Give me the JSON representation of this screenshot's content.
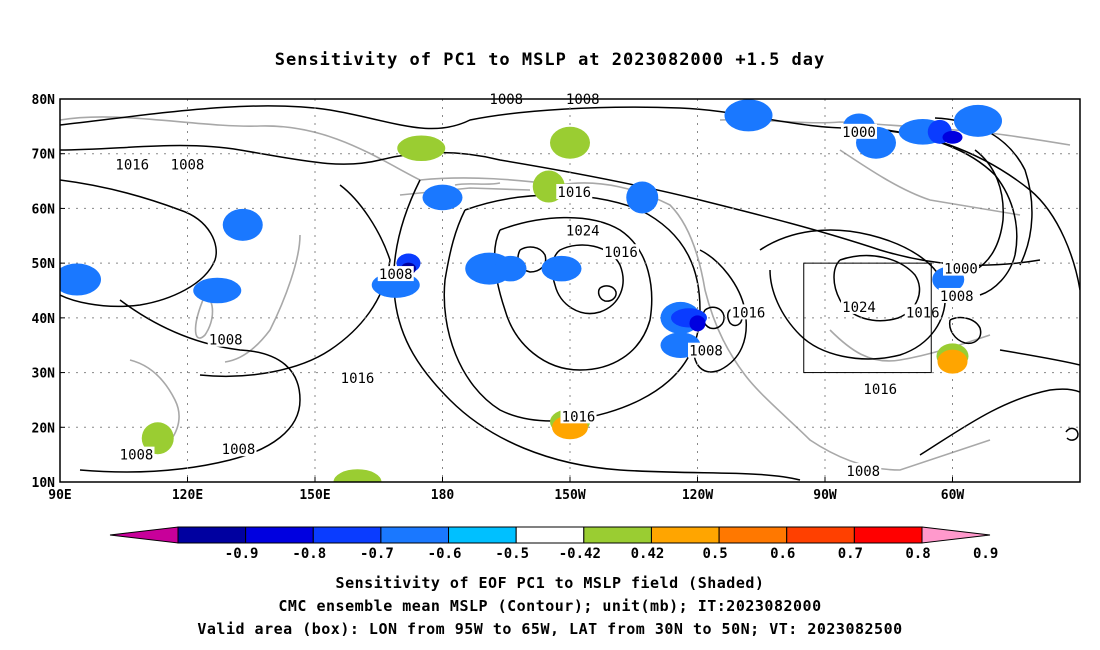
{
  "title": "Sensitivity of PC1 to MSLP at 2023082000 +1.5 day",
  "axes": {
    "lat_labels": [
      "80N",
      "70N",
      "60N",
      "50N",
      "40N",
      "30N",
      "20N",
      "10N"
    ],
    "lon_labels": [
      "90E",
      "120E",
      "150E",
      "180",
      "150W",
      "120W",
      "90W",
      "60W"
    ],
    "lon_range": [
      "90E",
      "30W"
    ],
    "lat_range": [
      "10N",
      "80N"
    ],
    "grid": "dotted"
  },
  "contour_labels": [
    {
      "text": "1008",
      "lon": -165,
      "lat": 80
    },
    {
      "text": "1008",
      "lon": -147,
      "lat": 80
    },
    {
      "text": "1000",
      "lon": -82,
      "lat": 74
    },
    {
      "text": "1016",
      "lon": 107,
      "lat": 68
    },
    {
      "text": "1008",
      "lon": 120,
      "lat": 68
    },
    {
      "text": "1016",
      "lon": -149,
      "lat": 63
    },
    {
      "text": "1024",
      "lon": -147,
      "lat": 56
    },
    {
      "text": "1016",
      "lon": -138,
      "lat": 52
    },
    {
      "text": "1000",
      "lon": -58,
      "lat": 49
    },
    {
      "text": "1008",
      "lon": 169,
      "lat": 48
    },
    {
      "text": "1008",
      "lon": -59,
      "lat": 44
    },
    {
      "text": "1024",
      "lon": -82,
      "lat": 42
    },
    {
      "text": "1016",
      "lon": -108,
      "lat": 41
    },
    {
      "text": "1016",
      "lon": -67,
      "lat": 41
    },
    {
      "text": "1008",
      "lon": 129,
      "lat": 36
    },
    {
      "text": "1008",
      "lon": -118,
      "lat": 34
    },
    {
      "text": "1016",
      "lon": 160,
      "lat": 29
    },
    {
      "text": "1016",
      "lon": -77,
      "lat": 27
    },
    {
      "text": "1016",
      "lon": -148,
      "lat": 22
    },
    {
      "text": "1008",
      "lon": 132,
      "lat": 16
    },
    {
      "text": "1008",
      "lon": 108,
      "lat": 15
    },
    {
      "text": "1008",
      "lon": -81,
      "lat": 12
    }
  ],
  "valid_box": {
    "lon_min": -95,
    "lon_max": -65,
    "lat_min": 30,
    "lat_max": 50
  },
  "sensitivity_patches": [
    {
      "lon": 172,
      "lat": 50,
      "level": -0.6
    },
    {
      "lon": 172,
      "lat": 49,
      "level": -0.8
    },
    {
      "lon": 169,
      "lat": 46,
      "level": -0.5
    },
    {
      "lon": 180,
      "lat": 62,
      "level": -0.6
    },
    {
      "lon": 180,
      "lat": 62,
      "level": -0.5
    },
    {
      "lon": -169,
      "lat": 49,
      "level": -0.5
    },
    {
      "lon": -164,
      "lat": 49,
      "level": -0.5
    },
    {
      "lon": -124,
      "lat": 40,
      "level": -0.5
    },
    {
      "lon": -122,
      "lat": 40,
      "level": -0.6
    },
    {
      "lon": -120,
      "lat": 39,
      "level": -0.7
    },
    {
      "lon": -124,
      "lat": 35,
      "level": -0.5
    },
    {
      "lon": -108,
      "lat": 77,
      "level": -0.5
    },
    {
      "lon": -82,
      "lat": 75,
      "level": -0.5
    },
    {
      "lon": -78,
      "lat": 72,
      "level": -0.5
    },
    {
      "lon": -67,
      "lat": 74,
      "level": -0.5
    },
    {
      "lon": -63,
      "lat": 74,
      "level": -0.6
    },
    {
      "lon": -60,
      "lat": 73,
      "level": -0.7
    },
    {
      "lon": -54,
      "lat": 76,
      "level": -0.5
    },
    {
      "lon": -61,
      "lat": 47,
      "level": -0.5
    },
    {
      "lon": 133,
      "lat": 57,
      "level": -0.5
    },
    {
      "lon": 127,
      "lat": 45,
      "level": -0.5
    },
    {
      "lon": -133,
      "lat": 62,
      "level": -0.5
    },
    {
      "lon": -152,
      "lat": 49,
      "level": -0.5
    },
    {
      "lon": 94,
      "lat": 47,
      "level": -0.5
    },
    {
      "lon": -150,
      "lat": 72,
      "level": 0.5
    },
    {
      "lon": -150,
      "lat": 72,
      "level": 0.5
    },
    {
      "lon": 175,
      "lat": 71,
      "level": 0.5
    },
    {
      "lon": -155,
      "lat": 64,
      "level": 0.5
    },
    {
      "lon": -150,
      "lat": 21,
      "level": 0.5
    },
    {
      "lon": -150,
      "lat": 20,
      "level": 0.6
    },
    {
      "lon": -60,
      "lat": 33,
      "level": 0.5
    },
    {
      "lon": -60,
      "lat": 32,
      "level": 0.6
    },
    {
      "lon": 160,
      "lat": 10,
      "level": 0.5
    },
    {
      "lon": 113,
      "lat": 18,
      "level": 0.5
    }
  ],
  "colorbar": {
    "labels": [
      "-0.9",
      "-0.8",
      "-0.7",
      "-0.6",
      "-0.5",
      "-0.42",
      "0.42",
      "0.5",
      "0.6",
      "0.7",
      "0.8",
      "0.9"
    ],
    "colors": [
      "#c8009a",
      "#0000a0",
      "#0000e0",
      "#0a3cff",
      "#1a78ff",
      "#00c0ff",
      "#ffffff",
      "#9acd32",
      "#ffa500",
      "#ff7800",
      "#ff4000",
      "#ff0000",
      "#ff99cc"
    ]
  },
  "captions": {
    "line1": "Sensitivity of EOF PC1 to MSLP field (Shaded)",
    "line2": "CMC ensemble mean MSLP (Contour); unit(mb); IT:2023082000",
    "line3": "Valid area (box): LON from 95W to 65W, LAT from 30N to 50N; VT: 2023082500"
  }
}
